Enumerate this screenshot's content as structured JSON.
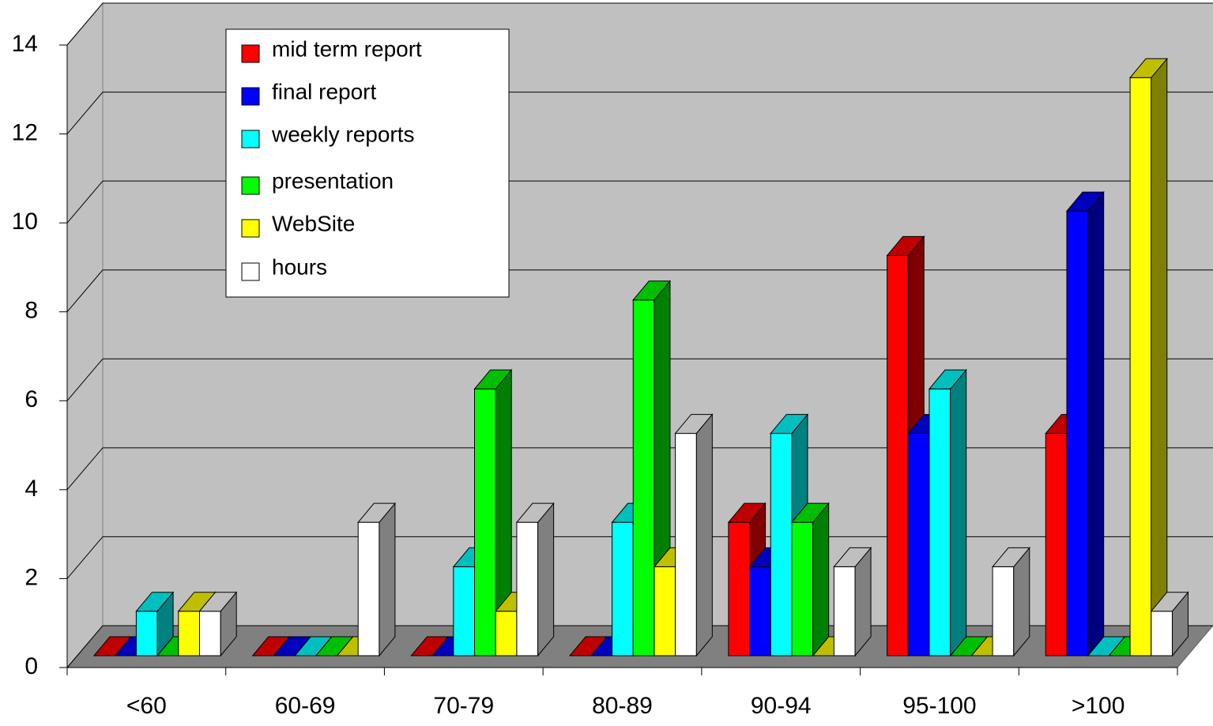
{
  "chart_data": {
    "type": "bar3d",
    "categories": [
      "<60",
      "60-69",
      "70-79",
      "80-89",
      "90-94",
      "95-100",
      ">100"
    ],
    "series": [
      {
        "name": "mid term report",
        "color": "#ff0000",
        "values": [
          0,
          0,
          0,
          0,
          3,
          9,
          5
        ]
      },
      {
        "name": "final report",
        "color": "#0000ff",
        "values": [
          0,
          0,
          0,
          0,
          2,
          5,
          10
        ]
      },
      {
        "name": "weekly reports",
        "color": "#00ffff",
        "values": [
          1,
          0,
          2,
          3,
          5,
          6,
          0
        ]
      },
      {
        "name": "presentation",
        "color": "#00ff00",
        "values": [
          0,
          0,
          6,
          8,
          3,
          0,
          0
        ]
      },
      {
        "name": "WebSite",
        "color": "#ffff00",
        "values": [
          1,
          0,
          1,
          2,
          0,
          0,
          13
        ]
      },
      {
        "name": "hours",
        "color": "#ffffff",
        "values": [
          1,
          3,
          3,
          5,
          2,
          2,
          1
        ]
      }
    ],
    "ylim": [
      0,
      14
    ],
    "yticks": [
      0,
      2,
      4,
      6,
      8,
      10,
      12,
      14
    ],
    "grid": true,
    "legend": "top-left"
  }
}
